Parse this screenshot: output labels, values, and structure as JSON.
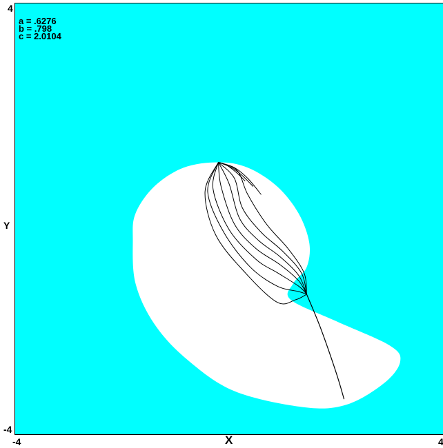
{
  "chart_data": {
    "type": "scatter",
    "title": "",
    "xlabel": "X",
    "ylabel": "Y",
    "xlim": [
      -4,
      4
    ],
    "ylim": [
      -4,
      4
    ],
    "x_tick_labels": [
      "-4",
      "4"
    ],
    "y_tick_labels": [
      "-4",
      "4"
    ],
    "parameters": [
      {
        "label": "a = .6276"
      },
      {
        "label": "b = .798"
      },
      {
        "label": "c = 2.0104"
      }
    ],
    "background_color": "#00ffff",
    "basin_color": "#ffffff",
    "orbit_color": "#000000",
    "basin_outline": [
      [
        -0.2,
        1.05
      ],
      [
        0.35,
        0.95
      ],
      [
        0.9,
        0.6
      ],
      [
        1.3,
        0.1
      ],
      [
        1.5,
        -0.45
      ],
      [
        1.45,
        -0.9
      ],
      [
        1.2,
        -1.2
      ],
      [
        1.15,
        -1.5
      ],
      [
        2.0,
        -1.9
      ],
      [
        3.0,
        -2.35
      ],
      [
        3.2,
        -2.65
      ],
      [
        2.9,
        -3.05
      ],
      [
        2.2,
        -3.45
      ],
      [
        1.4,
        -3.5
      ],
      [
        0.1,
        -3.2
      ],
      [
        -0.8,
        -2.6
      ],
      [
        -1.4,
        -1.95
      ],
      [
        -1.75,
        -1.2
      ],
      [
        -1.8,
        -0.4
      ],
      [
        -1.75,
        0.1
      ],
      [
        -1.4,
        0.6
      ],
      [
        -0.85,
        0.95
      ]
    ],
    "orbit_curves": [
      [
        [
          -0.2,
          1.05
        ],
        [
          -0.45,
          0.5
        ],
        [
          -0.25,
          -0.3
        ],
        [
          0.3,
          -1.0
        ],
        [
          0.9,
          -1.55
        ],
        [
          1.25,
          -1.5
        ],
        [
          1.45,
          -1.4
        ]
      ],
      [
        [
          -0.2,
          1.05
        ],
        [
          -0.4,
          0.5
        ],
        [
          -0.1,
          -0.25
        ],
        [
          0.4,
          -0.9
        ],
        [
          0.9,
          -1.25
        ],
        [
          1.3,
          -1.35
        ],
        [
          1.45,
          -1.4
        ]
      ],
      [
        [
          -0.2,
          1.05
        ],
        [
          -0.3,
          0.55
        ],
        [
          0.0,
          -0.2
        ],
        [
          0.5,
          -0.75
        ],
        [
          0.9,
          -1.0
        ],
        [
          1.3,
          -1.25
        ],
        [
          1.45,
          -1.4
        ]
      ],
      [
        [
          -0.2,
          1.05
        ],
        [
          -0.15,
          0.6
        ],
        [
          0.1,
          -0.1
        ],
        [
          0.5,
          -0.55
        ],
        [
          0.95,
          -0.85
        ],
        [
          1.3,
          -1.15
        ],
        [
          1.45,
          -1.4
        ]
      ],
      [
        [
          -0.2,
          1.05
        ],
        [
          0.0,
          0.65
        ],
        [
          0.2,
          0.0
        ],
        [
          0.55,
          -0.4
        ],
        [
          0.95,
          -0.7
        ],
        [
          1.3,
          -1.05
        ],
        [
          1.45,
          -1.4
        ]
      ],
      [
        [
          -0.2,
          1.05
        ],
        [
          0.1,
          0.75
        ],
        [
          0.25,
          0.2
        ],
        [
          0.6,
          -0.25
        ],
        [
          1.0,
          -0.6
        ],
        [
          1.35,
          -1.0
        ],
        [
          1.45,
          -1.4
        ]
      ],
      [
        [
          -0.2,
          1.05
        ],
        [
          0.15,
          0.9
        ],
        [
          0.35,
          0.45
        ],
        [
          0.7,
          -0.1
        ],
        [
          1.1,
          -0.55
        ],
        [
          1.4,
          -1.0
        ],
        [
          1.45,
          -1.4
        ]
      ],
      [
        [
          -0.2,
          1.05
        ],
        [
          0.1,
          0.95
        ],
        [
          0.35,
          0.75
        ],
        [
          0.6,
          0.45
        ]
      ],
      [
        [
          -0.2,
          1.05
        ],
        [
          0.05,
          0.95
        ],
        [
          0.25,
          0.8
        ],
        [
          0.45,
          0.6
        ]
      ],
      [
        [
          -0.2,
          1.05
        ],
        [
          -0.05,
          1.0
        ],
        [
          0.15,
          0.85
        ],
        [
          0.3,
          0.7
        ]
      ]
    ],
    "orbit_tail": [
      [
        1.45,
        -1.4
      ],
      [
        1.7,
        -2.0
      ],
      [
        2.0,
        -2.85
      ],
      [
        2.15,
        -3.35
      ]
    ]
  }
}
